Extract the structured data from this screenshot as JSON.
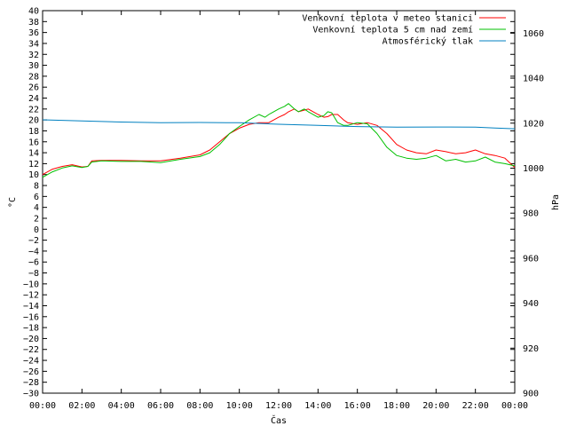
{
  "chart_data": {
    "type": "line",
    "xlabel": "Čas",
    "ylabel": "°C",
    "y2label": "hPa",
    "x_ticks": [
      "00:00",
      "02:00",
      "04:00",
      "06:00",
      "08:00",
      "10:00",
      "12:00",
      "14:00",
      "16:00",
      "18:00",
      "20:00",
      "22:00",
      "00:00"
    ],
    "xlim": [
      0,
      24
    ],
    "ylim": [
      -30,
      40
    ],
    "y_tick_step": 2,
    "y2lim": [
      900,
      1070
    ],
    "y2_ticks": [
      900,
      920,
      940,
      960,
      980,
      1000,
      1020,
      1040,
      1060
    ],
    "grid": false,
    "legend_position": "top-right",
    "series": [
      {
        "name": "Venkovní teplota v meteo stanici",
        "color": "#ff0000",
        "axis": "left",
        "x": [
          0,
          0.5,
          1,
          1.5,
          2,
          2.3,
          2.5,
          3,
          4,
          5,
          6,
          7,
          8,
          8.5,
          9,
          9.5,
          10,
          10.5,
          11,
          11.5,
          12,
          12.3,
          12.5,
          12.8,
          13,
          13.3,
          13.5,
          14,
          14.3,
          14.5,
          14.7,
          15,
          15.3,
          15.5,
          16,
          16.5,
          17,
          17.5,
          18,
          18.5,
          19,
          19.5,
          20,
          20.5,
          21,
          21.5,
          22,
          22.5,
          23,
          23.5,
          24
        ],
        "y": [
          10.0,
          11.0,
          11.5,
          11.8,
          11.4,
          11.5,
          12.5,
          12.6,
          12.6,
          12.5,
          12.5,
          13.0,
          13.6,
          14.5,
          16.0,
          17.5,
          18.5,
          19.2,
          19.5,
          19.5,
          20.5,
          21.0,
          21.5,
          22.0,
          21.5,
          21.8,
          22.0,
          21.0,
          20.5,
          20.6,
          21.0,
          21.0,
          20.0,
          19.5,
          19.2,
          19.5,
          19.0,
          17.5,
          15.5,
          14.5,
          14.0,
          13.8,
          14.5,
          14.2,
          13.8,
          14.0,
          14.5,
          13.8,
          13.5,
          13.0,
          11.3
        ]
      },
      {
        "name": "Venkovní teplota 5 cm nad zemí",
        "color": "#00c000",
        "axis": "left",
        "x": [
          0,
          0.5,
          1,
          1.5,
          2,
          2.3,
          2.5,
          3,
          4,
          5,
          6,
          7,
          8,
          8.5,
          9,
          9.5,
          10,
          10.5,
          11,
          11.3,
          11.5,
          12,
          12.3,
          12.5,
          12.8,
          13,
          13.3,
          13.5,
          14,
          14.3,
          14.5,
          14.7,
          15,
          15.3,
          15.5,
          16,
          16.5,
          17,
          17.5,
          18,
          18.5,
          19,
          19.5,
          20,
          20.5,
          21,
          21.5,
          22,
          22.5,
          23,
          23.5,
          24
        ],
        "y": [
          9.5,
          10.5,
          11.2,
          11.6,
          11.3,
          11.5,
          12.3,
          12.5,
          12.4,
          12.4,
          12.2,
          12.8,
          13.3,
          14.0,
          15.5,
          17.5,
          18.8,
          20.0,
          21.0,
          20.5,
          21.0,
          22.0,
          22.5,
          23.0,
          22.0,
          21.5,
          22.0,
          21.5,
          20.5,
          20.8,
          21.5,
          21.3,
          19.5,
          19.0,
          19.0,
          19.5,
          19.3,
          17.5,
          15.0,
          13.5,
          13.0,
          12.8,
          13.0,
          13.5,
          12.5,
          12.8,
          12.3,
          12.5,
          13.2,
          12.3,
          12.0,
          11.6
        ]
      },
      {
        "name": "Atmosférický tlak",
        "color": "#0080c0",
        "axis": "right",
        "x": [
          0,
          2,
          4,
          6,
          8,
          10,
          12,
          14,
          16,
          18,
          20,
          22,
          23,
          24
        ],
        "y": [
          1021.5,
          1021.0,
          1020.5,
          1020.2,
          1020.3,
          1020.2,
          1019.5,
          1019.0,
          1018.5,
          1018.2,
          1018.3,
          1018.2,
          1017.8,
          1017.5
        ]
      }
    ]
  }
}
